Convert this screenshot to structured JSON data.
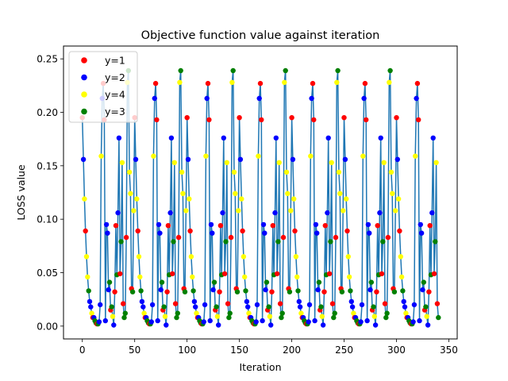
{
  "chart_data": {
    "type": "line",
    "title": "Objective function value against iteration",
    "xlabel": "Iteration",
    "ylabel": "LOSS value",
    "xlim": [
      -18,
      358
    ],
    "ylim": [
      -0.012,
      0.262
    ],
    "xticks": [
      0,
      50,
      100,
      150,
      200,
      250,
      300,
      350
    ],
    "yticks": [
      0.0,
      0.05,
      0.1,
      0.15,
      0.2,
      0.25
    ],
    "ytick_labels": [
      "0.00",
      "0.05",
      "0.10",
      "0.15",
      "0.20",
      "0.25"
    ],
    "legend_position": "top-left",
    "line_color": "#1f77b4",
    "series": [
      {
        "name": "y=1",
        "color": "#ff0000"
      },
      {
        "name": "y=2",
        "color": "#0000ff"
      },
      {
        "name": "y=4",
        "color": "#ffff00"
      },
      {
        "name": "y=3",
        "color": "#008000"
      }
    ],
    "period": 50,
    "x_max": 340,
    "base_cycle": [
      [
        0,
        0.195,
        0
      ],
      [
        1,
        0.156,
        1
      ],
      [
        2,
        0.119,
        2
      ],
      [
        3,
        0.089,
        0
      ],
      [
        4,
        0.065,
        2
      ],
      [
        5,
        0.046,
        2
      ],
      [
        6,
        0.033,
        3
      ],
      [
        7,
        0.023,
        1
      ],
      [
        8,
        0.018,
        1
      ],
      [
        9,
        0.012,
        2
      ],
      [
        10,
        0.008,
        0
      ],
      [
        11,
        0.008,
        1
      ],
      [
        12,
        0.005,
        3
      ],
      [
        13,
        0.003,
        3
      ],
      [
        14,
        0.002,
        0
      ],
      [
        15,
        0.002,
        3
      ],
      [
        16,
        0.004,
        1
      ],
      [
        17,
        0.02,
        1
      ],
      [
        18,
        0.159,
        2
      ],
      [
        19,
        0.213,
        1
      ],
      [
        20,
        0.227,
        0
      ],
      [
        21,
        0.193,
        0
      ],
      [
        22,
        0.005,
        1
      ],
      [
        23,
        0.095,
        1
      ],
      [
        24,
        0.087,
        1
      ],
      [
        25,
        0.034,
        1
      ],
      [
        26,
        0.041,
        3
      ],
      [
        27,
        0.015,
        0
      ],
      [
        28,
        0.018,
        3
      ],
      [
        29,
        0.009,
        2
      ],
      [
        30,
        0.001,
        1
      ],
      [
        31,
        0.032,
        0
      ],
      [
        32,
        0.094,
        0
      ],
      [
        33,
        0.048,
        3
      ],
      [
        34,
        0.106,
        1
      ],
      [
        35,
        0.176,
        1
      ],
      [
        36,
        0.049,
        0
      ],
      [
        37,
        0.079,
        3
      ],
      [
        38,
        0.153,
        2
      ],
      [
        39,
        0.021,
        0
      ],
      [
        40,
        0.008,
        3
      ],
      [
        41,
        0.012,
        3
      ],
      [
        42,
        0.083,
        0
      ],
      [
        43,
        0.228,
        2
      ],
      [
        44,
        0.239,
        3
      ],
      [
        45,
        0.144,
        2
      ],
      [
        46,
        0.124,
        2
      ],
      [
        47,
        0.035,
        0
      ],
      [
        48,
        0.032,
        3
      ],
      [
        49,
        0.108,
        2
      ]
    ]
  }
}
